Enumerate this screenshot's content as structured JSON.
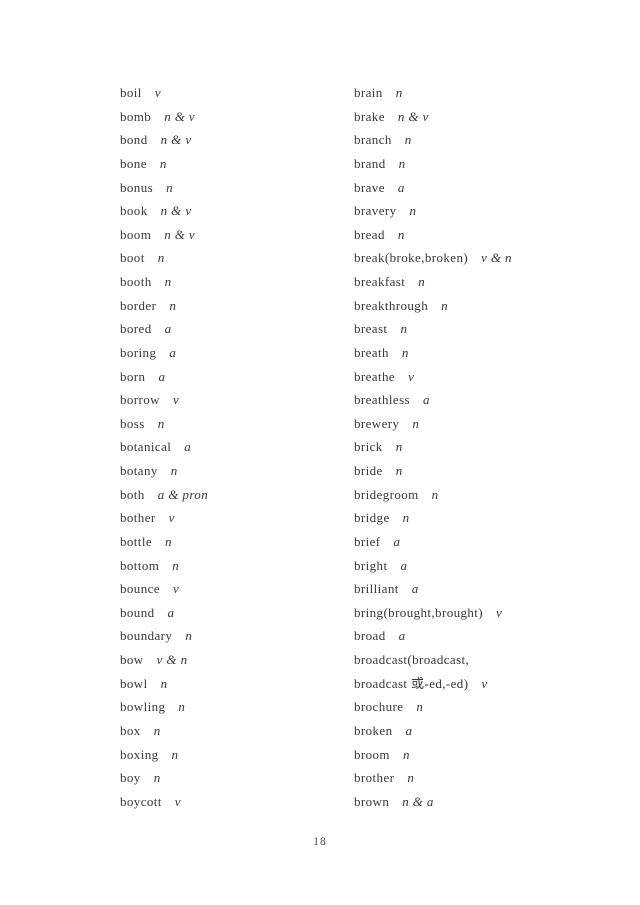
{
  "document": {
    "page_number": "18"
  },
  "columns": {
    "left": [
      {
        "word": "boil",
        "pos": "v"
      },
      {
        "word": "bomb",
        "pos": "n & v"
      },
      {
        "word": "bond",
        "pos": "n & v"
      },
      {
        "word": "bone",
        "pos": "n"
      },
      {
        "word": "bonus",
        "pos": "n"
      },
      {
        "word": "book",
        "pos": "n & v"
      },
      {
        "word": "boom",
        "pos": "n & v"
      },
      {
        "word": "boot",
        "pos": "n"
      },
      {
        "word": "booth",
        "pos": "n"
      },
      {
        "word": "border",
        "pos": "n"
      },
      {
        "word": "bored",
        "pos": "a"
      },
      {
        "word": "boring",
        "pos": "a"
      },
      {
        "word": "born",
        "pos": "a"
      },
      {
        "word": "borrow",
        "pos": "v"
      },
      {
        "word": "boss",
        "pos": "n"
      },
      {
        "word": "botanical",
        "pos": "a"
      },
      {
        "word": "botany",
        "pos": "n"
      },
      {
        "word": "both",
        "pos": "a & pron"
      },
      {
        "word": "bother",
        "pos": "v"
      },
      {
        "word": "bottle",
        "pos": "n"
      },
      {
        "word": "bottom",
        "pos": "n"
      },
      {
        "word": "bounce",
        "pos": "v"
      },
      {
        "word": "bound",
        "pos": "a"
      },
      {
        "word": "boundary",
        "pos": "n"
      },
      {
        "word": "bow",
        "pos": "v & n"
      },
      {
        "word": "bowl",
        "pos": "n"
      },
      {
        "word": "bowling",
        "pos": "n"
      },
      {
        "word": "box",
        "pos": "n"
      },
      {
        "word": "boxing",
        "pos": "n"
      },
      {
        "word": "boy",
        "pos": "n"
      },
      {
        "word": "boycott",
        "pos": "v"
      }
    ],
    "right": [
      {
        "word": "brain",
        "pos": "n"
      },
      {
        "word": "brake",
        "pos": "n & v"
      },
      {
        "word": "branch",
        "pos": "n"
      },
      {
        "word": "brand",
        "pos": "n"
      },
      {
        "word": "brave",
        "pos": "a"
      },
      {
        "word": "bravery",
        "pos": "n"
      },
      {
        "word": "bread",
        "pos": "n"
      },
      {
        "word": "break(broke,broken)",
        "pos": "v & n"
      },
      {
        "word": "breakfast",
        "pos": "n"
      },
      {
        "word": "breakthrough",
        "pos": "n"
      },
      {
        "word": "breast",
        "pos": "n"
      },
      {
        "word": "breath",
        "pos": "n"
      },
      {
        "word": "breathe",
        "pos": "v"
      },
      {
        "word": "breathless",
        "pos": "a"
      },
      {
        "word": "brewery",
        "pos": "n"
      },
      {
        "word": "brick",
        "pos": "n"
      },
      {
        "word": "bride",
        "pos": "n"
      },
      {
        "word": "bridegroom",
        "pos": "n"
      },
      {
        "word": "bridge",
        "pos": "n"
      },
      {
        "word": "brief",
        "pos": "a"
      },
      {
        "word": "bright",
        "pos": "a"
      },
      {
        "word": "brilliant",
        "pos": "a"
      },
      {
        "word": "bring(brought,brought)",
        "pos": "v"
      },
      {
        "word": "broad",
        "pos": "a"
      },
      {
        "word": "broadcast(broadcast,",
        "pos": ""
      },
      {
        "word": "broadcast 或-ed,-ed)",
        "pos": "v"
      },
      {
        "word": "brochure",
        "pos": "n"
      },
      {
        "word": "broken",
        "pos": "a"
      },
      {
        "word": "broom",
        "pos": "n"
      },
      {
        "word": "brother",
        "pos": "n"
      },
      {
        "word": "brown",
        "pos": "n & a"
      }
    ]
  }
}
